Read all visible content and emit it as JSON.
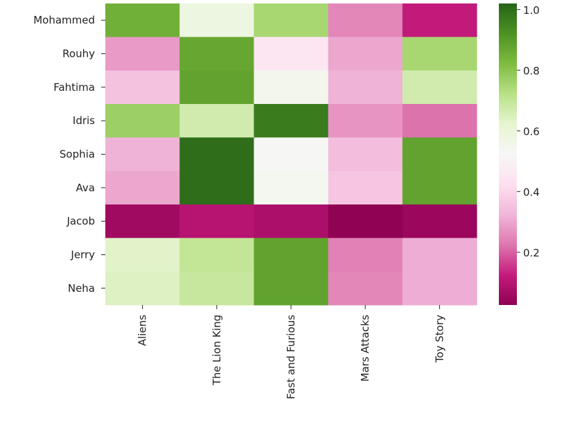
{
  "chart_data": {
    "type": "heatmap",
    "title": "",
    "xlabel": "",
    "ylabel": "",
    "colormap": "PiYG",
    "x_categories": [
      "Aliens",
      "The Lion King",
      "Fast and Furious",
      "Mars Attacks",
      "Toy Story"
    ],
    "y_categories": [
      "Mohammed",
      "Rouhy",
      "Fahtima",
      "Idris",
      "Sophia",
      "Ava",
      "Jacob",
      "Jerry",
      "Neha"
    ],
    "values": [
      [
        0.85,
        0.58,
        0.75,
        0.25,
        0.12
      ],
      [
        0.28,
        0.87,
        0.45,
        0.3,
        0.75
      ],
      [
        0.35,
        0.88,
        0.55,
        0.32,
        0.67
      ],
      [
        0.77,
        0.67,
        0.97,
        0.27,
        0.22
      ],
      [
        0.32,
        1.0,
        0.53,
        0.34,
        0.88
      ],
      [
        0.3,
        1.0,
        0.54,
        0.36,
        0.88
      ],
      [
        0.06,
        0.1,
        0.08,
        0.03,
        0.05
      ],
      [
        0.63,
        0.7,
        0.88,
        0.24,
        0.31
      ],
      [
        0.64,
        0.69,
        0.88,
        0.25,
        0.31
      ]
    ],
    "colorbar": {
      "range": [
        0.026,
        1.02
      ],
      "ticks": [
        0.2,
        0.4,
        0.6,
        0.8,
        1.0
      ],
      "tick_labels": [
        "0.2",
        "0.4",
        "0.6",
        "0.8",
        "1.0"
      ]
    },
    "colormap_stops": [
      "#8e0152",
      "#c51b7d",
      "#de77ae",
      "#f1b6da",
      "#fde0ef",
      "#f7f7f7",
      "#e6f5d0",
      "#b8e186",
      "#7fbc41",
      "#4d9221",
      "#276419"
    ]
  }
}
